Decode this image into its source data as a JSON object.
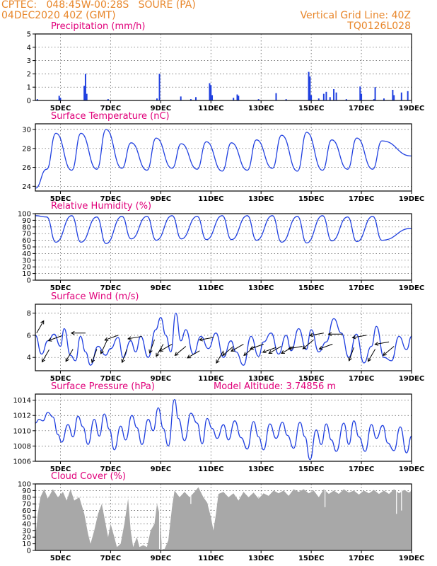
{
  "header": {
    "line1": "CPTEC:   048:45W-00:28S   SOURE (PA)",
    "line2": "04DEC2020 40Z (GMT)",
    "right1": "Vertical Grid Line: 40Z",
    "right2": "TQ0126L028"
  },
  "colors": {
    "header": "#e8862a",
    "title": "#e0007a",
    "line": "#2040e0",
    "bar": "#2040e0",
    "cloud": "#a8a8a8"
  },
  "x_labels": [
    "5DEC",
    "7DEC",
    "9DEC",
    "11DEC",
    "13DEC",
    "15DEC",
    "17DEC",
    "19DEC"
  ],
  "chart_data": [
    {
      "type": "bar",
      "title": "Precipitation (mm/h)",
      "ylim": [
        0,
        5
      ],
      "yticks": [
        0,
        1,
        2,
        3,
        4,
        5
      ],
      "x_range_days": [
        4.0,
        19.0
      ],
      "points": [
        [
          4.08,
          0.1
        ],
        [
          4.95,
          0.35
        ],
        [
          5.0,
          0.2
        ],
        [
          5.95,
          1.1
        ],
        [
          6.0,
          2.0
        ],
        [
          6.05,
          0.5
        ],
        [
          6.9,
          0.1
        ],
        [
          8.85,
          0.15
        ],
        [
          8.95,
          2.0
        ],
        [
          9.8,
          0.3
        ],
        [
          10.2,
          0.1
        ],
        [
          10.4,
          0.25
        ],
        [
          10.95,
          1.3
        ],
        [
          11.0,
          1.15
        ],
        [
          11.05,
          0.4
        ],
        [
          11.9,
          0.2
        ],
        [
          12.05,
          0.45
        ],
        [
          12.1,
          0.35
        ],
        [
          12.9,
          0.1
        ],
        [
          13.6,
          0.55
        ],
        [
          14.0,
          0.1
        ],
        [
          14.9,
          2.15
        ],
        [
          14.95,
          1.8
        ],
        [
          15.0,
          0.4
        ],
        [
          15.3,
          0.15
        ],
        [
          15.5,
          0.5
        ],
        [
          15.6,
          0.65
        ],
        [
          15.75,
          0.25
        ],
        [
          15.9,
          0.85
        ],
        [
          16.0,
          0.6
        ],
        [
          16.4,
          0.1
        ],
        [
          16.95,
          1.05
        ],
        [
          17.0,
          0.5
        ],
        [
          17.5,
          0.1
        ],
        [
          17.55,
          1.0
        ],
        [
          17.9,
          0.15
        ],
        [
          18.25,
          0.8
        ],
        [
          18.3,
          0.4
        ],
        [
          18.6,
          0.6
        ],
        [
          18.85,
          0.7
        ]
      ]
    },
    {
      "type": "line",
      "title": "Surface Temperature (nC)",
      "ylim": [
        23.5,
        30.6
      ],
      "yticks": [
        24,
        26,
        28,
        30
      ],
      "daily": {
        "max_hour": 0.82,
        "min_hour": 0.45,
        "maxima": [
          29.6,
          29.6,
          30.0,
          28.6,
          29.1,
          28.5,
          28.7,
          28.6,
          28.9,
          29.4,
          29.7,
          28.9,
          29.1,
          28.8
        ],
        "minima": [
          25.8,
          25.7,
          25.8,
          25.9,
          25.7,
          25.9,
          25.8,
          25.6,
          25.7,
          25.9,
          25.6,
          25.7,
          25.8,
          25.8
        ],
        "start_value": 23.8,
        "end_value": 27.2
      }
    },
    {
      "type": "line",
      "title": "Relative Humidity (%)",
      "ylim": [
        0,
        100
      ],
      "yticks": [
        0,
        10,
        20,
        30,
        40,
        50,
        60,
        70,
        80,
        90,
        100
      ],
      "daily": {
        "max_hour": 0.45,
        "min_hour": 0.82,
        "maxima": [
          95,
          97,
          95,
          96,
          96,
          97,
          96,
          97,
          97,
          97,
          96,
          97,
          95,
          96
        ],
        "minima": [
          57,
          57,
          55,
          62,
          60,
          62,
          61,
          61,
          60,
          57,
          56,
          59,
          58,
          60
        ],
        "start_value": 97,
        "end_value": 78
      }
    },
    {
      "type": "line",
      "title": "Surface Wind (m/s)",
      "ylim": [
        2.8,
        8.8
      ],
      "yticks": [
        4,
        6,
        8
      ],
      "points": [
        [
          4.0,
          6.0
        ],
        [
          4.25,
          4.3
        ],
        [
          4.5,
          5.5
        ],
        [
          4.75,
          6.1
        ],
        [
          5.0,
          5.0
        ],
        [
          5.15,
          6.6
        ],
        [
          5.4,
          4.2
        ],
        [
          5.6,
          3.7
        ],
        [
          5.8,
          5.9
        ],
        [
          6.0,
          4.5
        ],
        [
          6.2,
          3.3
        ],
        [
          6.5,
          5.0
        ],
        [
          6.8,
          4.2
        ],
        [
          7.0,
          4.8
        ],
        [
          7.3,
          5.8
        ],
        [
          7.5,
          4.0
        ],
        [
          7.8,
          5.5
        ],
        [
          8.0,
          4.5
        ],
        [
          8.2,
          5.9
        ],
        [
          8.5,
          4.0
        ],
        [
          8.8,
          6.5
        ],
        [
          9.0,
          7.6
        ],
        [
          9.2,
          6.0
        ],
        [
          9.4,
          4.5
        ],
        [
          9.6,
          8.0
        ],
        [
          9.8,
          5.5
        ],
        [
          10.0,
          6.5
        ],
        [
          10.3,
          4.3
        ],
        [
          10.6,
          5.9
        ],
        [
          10.9,
          4.8
        ],
        [
          11.2,
          6.2
        ],
        [
          11.5,
          4.0
        ],
        [
          11.8,
          5.5
        ],
        [
          12.0,
          4.5
        ],
        [
          12.3,
          3.3
        ],
        [
          12.6,
          5.9
        ],
        [
          12.9,
          4.1
        ],
        [
          13.1,
          5.4
        ],
        [
          13.4,
          6.2
        ],
        [
          13.7,
          4.3
        ],
        [
          14.0,
          6.0
        ],
        [
          14.2,
          4.6
        ],
        [
          14.5,
          6.6
        ],
        [
          14.8,
          4.7
        ],
        [
          15.0,
          6.5
        ],
        [
          15.3,
          4.5
        ],
        [
          15.6,
          5.4
        ],
        [
          15.9,
          7.5
        ],
        [
          16.2,
          6.2
        ],
        [
          16.5,
          4.0
        ],
        [
          16.8,
          6.1
        ],
        [
          17.1,
          3.5
        ],
        [
          17.4,
          5.0
        ],
        [
          17.6,
          6.8
        ],
        [
          17.9,
          4.0
        ],
        [
          18.2,
          3.7
        ],
        [
          18.5,
          5.9
        ],
        [
          18.8,
          4.7
        ],
        [
          19.0,
          5.9
        ]
      ],
      "arrows": [
        [
          4.05,
          6.2,
          240
        ],
        [
          4.55,
          4.7,
          60
        ],
        [
          5.05,
          5.95,
          20
        ],
        [
          5.5,
          4.75,
          60
        ],
        [
          6.0,
          6.2,
          0
        ],
        [
          6.45,
          4.75,
          70
        ],
        [
          6.85,
          5.5,
          65
        ],
        [
          7.3,
          6.0,
          20
        ],
        [
          7.65,
          4.75,
          70
        ],
        [
          8.25,
          5.9,
          10
        ],
        [
          8.75,
          5.6,
          70
        ],
        [
          9.1,
          5.2,
          60
        ],
        [
          9.45,
          5.2,
          30
        ],
        [
          10.0,
          5.0,
          40
        ],
        [
          10.55,
          4.6,
          30
        ],
        [
          11.1,
          5.8,
          10
        ],
        [
          11.5,
          4.6,
          60
        ],
        [
          11.9,
          5.0,
          40
        ],
        [
          12.3,
          5.2,
          30
        ],
        [
          12.75,
          5.0,
          40
        ],
        [
          13.1,
          5.2,
          20
        ],
        [
          13.6,
          4.9,
          20
        ],
        [
          13.8,
          5.0,
          30
        ],
        [
          14.3,
          5.0,
          30
        ],
        [
          14.65,
          5.0,
          10
        ],
        [
          15.1,
          5.6,
          40
        ],
        [
          15.5,
          6.2,
          10
        ],
        [
          15.85,
          5.2,
          20
        ],
        [
          16.25,
          6.1,
          0
        ],
        [
          16.7,
          4.9,
          70
        ],
        [
          17.2,
          6.0,
          10
        ],
        [
          17.55,
          4.75,
          60
        ],
        [
          18.1,
          5.4,
          10
        ],
        [
          18.3,
          5.0,
          40
        ]
      ]
    },
    {
      "type": "line",
      "title": "Surface Pressure (hPa)",
      "ylim": [
        1006,
        1014.8
      ],
      "yticks": [
        1006,
        1008,
        1010,
        1012,
        1014
      ],
      "points": [
        [
          4.0,
          1011.0
        ],
        [
          4.15,
          1011.5
        ],
        [
          4.3,
          1011.3
        ],
        [
          4.5,
          1012.4
        ],
        [
          4.7,
          1011.8
        ],
        [
          4.9,
          1009.5
        ],
        [
          5.05,
          1008.5
        ],
        [
          5.3,
          1010.8
        ],
        [
          5.5,
          1009.2
        ],
        [
          5.7,
          1011.9
        ],
        [
          5.9,
          1010.5
        ],
        [
          6.1,
          1008.2
        ],
        [
          6.35,
          1011.5
        ],
        [
          6.55,
          1009.3
        ],
        [
          6.75,
          1012.2
        ],
        [
          6.95,
          1010.2
        ],
        [
          7.15,
          1007.5
        ],
        [
          7.4,
          1010.6
        ],
        [
          7.6,
          1008.8
        ],
        [
          7.85,
          1012.0
        ],
        [
          8.05,
          1010.4
        ],
        [
          8.25,
          1008.2
        ],
        [
          8.5,
          1011.5
        ],
        [
          8.7,
          1010.0
        ],
        [
          8.9,
          1013.0
        ],
        [
          9.1,
          1010.3
        ],
        [
          9.3,
          1008.0
        ],
        [
          9.55,
          1014.1
        ],
        [
          9.7,
          1011.6
        ],
        [
          9.95,
          1008.7
        ],
        [
          10.2,
          1012.3
        ],
        [
          10.45,
          1011.0
        ],
        [
          10.65,
          1008.3
        ],
        [
          10.85,
          1011.6
        ],
        [
          11.05,
          1010.3
        ],
        [
          11.25,
          1009.0
        ],
        [
          11.5,
          1010.8
        ],
        [
          11.7,
          1008.8
        ],
        [
          11.95,
          1011.3
        ],
        [
          12.2,
          1009.1
        ],
        [
          12.45,
          1007.6
        ],
        [
          12.7,
          1011.2
        ],
        [
          12.9,
          1009.2
        ],
        [
          13.1,
          1007.5
        ],
        [
          13.35,
          1010.9
        ],
        [
          13.6,
          1009.0
        ],
        [
          13.85,
          1011.1
        ],
        [
          14.05,
          1009.4
        ],
        [
          14.3,
          1007.7
        ],
        [
          14.55,
          1011.1
        ],
        [
          14.75,
          1009.2
        ],
        [
          14.95,
          1006.2
        ],
        [
          15.2,
          1010.1
        ],
        [
          15.4,
          1008.2
        ],
        [
          15.6,
          1010.9
        ],
        [
          15.8,
          1008.8
        ],
        [
          16.0,
          1007.3
        ],
        [
          16.3,
          1011.0
        ],
        [
          16.5,
          1008.2
        ],
        [
          16.7,
          1011.3
        ],
        [
          16.9,
          1009.2
        ],
        [
          17.15,
          1007.3
        ],
        [
          17.4,
          1010.8
        ],
        [
          17.6,
          1009.0
        ],
        [
          17.85,
          1010.7
        ],
        [
          18.05,
          1008.4
        ],
        [
          18.3,
          1007.4
        ],
        [
          18.55,
          1010.5
        ],
        [
          18.8,
          1007.1
        ],
        [
          19.0,
          1009.3
        ]
      ]
    },
    {
      "type": "area",
      "title": "Cloud Cover (%)",
      "ylim": [
        0,
        100
      ],
      "yticks": [
        0,
        10,
        20,
        30,
        40,
        50,
        60,
        70,
        80,
        90,
        100
      ],
      "points": [
        [
          4.0,
          20
        ],
        [
          4.1,
          55
        ],
        [
          4.2,
          80
        ],
        [
          4.35,
          92
        ],
        [
          4.5,
          78
        ],
        [
          4.7,
          92
        ],
        [
          4.9,
          80
        ],
        [
          5.1,
          88
        ],
        [
          5.25,
          75
        ],
        [
          5.4,
          92
        ],
        [
          5.55,
          75
        ],
        [
          5.75,
          80
        ],
        [
          5.95,
          55
        ],
        [
          6.1,
          25
        ],
        [
          6.2,
          10
        ],
        [
          6.35,
          30
        ],
        [
          6.5,
          55
        ],
        [
          6.65,
          70
        ],
        [
          6.8,
          40
        ],
        [
          6.9,
          20
        ],
        [
          7.0,
          40
        ],
        [
          7.15,
          20
        ],
        [
          7.25,
          5
        ],
        [
          7.4,
          10
        ],
        [
          7.55,
          40
        ],
        [
          7.7,
          78
        ],
        [
          7.8,
          30
        ],
        [
          7.9,
          5
        ],
        [
          8.05,
          20
        ],
        [
          8.15,
          5
        ],
        [
          8.3,
          8
        ],
        [
          8.45,
          5
        ],
        [
          8.6,
          30
        ],
        [
          8.75,
          40
        ],
        [
          8.85,
          70
        ],
        [
          8.95,
          55
        ],
        [
          9.0,
          30
        ],
        [
          9.05,
          2
        ],
        [
          9.15,
          2
        ],
        [
          9.3,
          15
        ],
        [
          9.45,
          65
        ],
        [
          9.55,
          90
        ],
        [
          9.75,
          80
        ],
        [
          9.95,
          88
        ],
        [
          10.15,
          80
        ],
        [
          10.35,
          88
        ],
        [
          10.5,
          95
        ],
        [
          10.7,
          80
        ],
        [
          10.85,
          72
        ],
        [
          11.0,
          50
        ],
        [
          11.1,
          30
        ],
        [
          11.2,
          55
        ],
        [
          11.3,
          85
        ],
        [
          11.5,
          88
        ],
        [
          11.7,
          80
        ],
        [
          11.9,
          86
        ],
        [
          12.1,
          75
        ],
        [
          12.3,
          88
        ],
        [
          12.5,
          80
        ],
        [
          12.7,
          87
        ],
        [
          12.9,
          78
        ],
        [
          13.1,
          86
        ],
        [
          13.3,
          82
        ],
        [
          13.5,
          90
        ],
        [
          13.7,
          86
        ],
        [
          13.9,
          90
        ],
        [
          14.1,
          82
        ],
        [
          14.3,
          92
        ],
        [
          14.5,
          88
        ],
        [
          14.7,
          92
        ],
        [
          14.9,
          86
        ],
        [
          15.1,
          90
        ],
        [
          15.3,
          80
        ],
        [
          15.5,
          92
        ],
        [
          15.7,
          85
        ],
        [
          15.9,
          90
        ],
        [
          16.1,
          85
        ],
        [
          16.3,
          92
        ],
        [
          16.5,
          87
        ],
        [
          16.7,
          90
        ],
        [
          16.9,
          84
        ],
        [
          17.1,
          90
        ],
        [
          17.3,
          86
        ],
        [
          17.5,
          91
        ],
        [
          17.7,
          85
        ],
        [
          17.9,
          90
        ],
        [
          18.1,
          85
        ],
        [
          18.3,
          92
        ],
        [
          18.5,
          86
        ],
        [
          18.7,
          91
        ],
        [
          18.9,
          87
        ],
        [
          19.0,
          90
        ]
      ],
      "dips": [
        [
          8.95,
          2
        ],
        [
          9.05,
          1
        ],
        [
          10.2,
          70
        ],
        [
          15.55,
          65
        ],
        [
          18.4,
          55
        ],
        [
          18.6,
          60
        ]
      ]
    }
  ],
  "annotations": {
    "model_altitude": "Model Altitude: 3.74856 m"
  }
}
